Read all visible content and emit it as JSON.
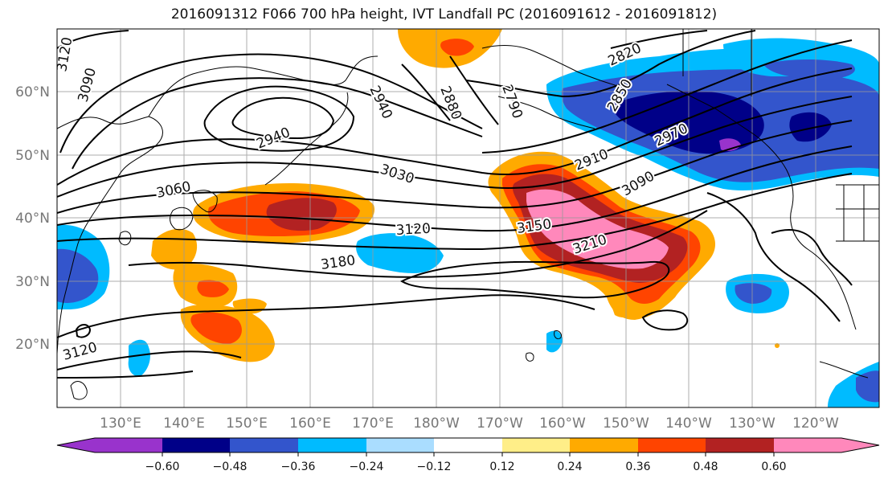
{
  "title": "2016091312 F066 700 hPa height, IVT Landfall PC (2016091612 - 2016091812)",
  "lon_ticks": [
    "130°E",
    "140°E",
    "150°E",
    "160°E",
    "170°E",
    "180°W",
    "170°W",
    "160°W",
    "150°W",
    "140°W",
    "130°W",
    "120°W"
  ],
  "lat_ticks": [
    "60°N",
    "50°N",
    "40°N",
    "30°N",
    "20°N"
  ],
  "contour_labels": [
    "3120",
    "3090",
    "2940",
    "2880",
    "2790",
    "2820",
    "2850",
    "2910",
    "2970",
    "2940",
    "3030",
    "3060",
    "3090",
    "3120",
    "3150",
    "3180",
    "3210",
    "3120"
  ],
  "colorbar": {
    "ticks": [
      "−0.60",
      "−0.48",
      "−0.36",
      "−0.24",
      "−0.12",
      "0.12",
      "0.24",
      "0.36",
      "0.48",
      "0.60"
    ],
    "colors": [
      "#9933cc",
      "#000088",
      "#3355cc",
      "#00bbff",
      "#aaddff",
      "#ffffff",
      "#ffee88",
      "#ffaa00",
      "#ff4400",
      "#b22222",
      "#ff88bb"
    ]
  },
  "colors": {
    "neg_strong": "#000088",
    "neg_mid": "#3355cc",
    "neg_weak": "#00bbff",
    "neg_light": "#aaddff",
    "pos_light": "#ffee88",
    "pos_weak": "#ffaa00",
    "pos_mid": "#ff4400",
    "pos_strong": "#b22222",
    "pos_max": "#ff88bb",
    "neg_max": "#9933cc"
  }
}
